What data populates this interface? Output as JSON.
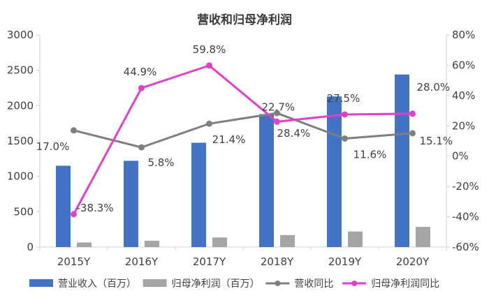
{
  "chart_data": {
    "type": "bar",
    "title": "营收和归母净利润",
    "categories": [
      "2015Y",
      "2016Y",
      "2017Y",
      "2018Y",
      "2019Y",
      "2020Y"
    ],
    "y_left": {
      "min": 0,
      "max": 3000,
      "ticks": [
        "0",
        "500",
        "1000",
        "1500",
        "2000",
        "2500",
        "3000"
      ]
    },
    "y_right": {
      "min": -60,
      "max": 80,
      "ticks": [
        "-60%",
        "-40%",
        "-20%",
        "0%",
        "20%",
        "40%",
        "60%",
        "80%"
      ]
    },
    "series": [
      {
        "name": "营业收入（百万）",
        "type": "bar",
        "axis": "left",
        "color": "#4472c4",
        "values": [
          1150,
          1220,
          1475,
          1880,
          2130,
          2440
        ]
      },
      {
        "name": "归母净利润（百万）",
        "type": "bar",
        "axis": "left",
        "color": "#a5a5a5",
        "values": [
          65,
          90,
          135,
          170,
          220,
          285
        ]
      },
      {
        "name": "营收同比",
        "type": "line",
        "axis": "right",
        "color": "#7f7f7f",
        "values": [
          17.0,
          5.8,
          21.4,
          28.4,
          11.6,
          15.1
        ],
        "labels": [
          "17.0%",
          "5.8%",
          "21.4%",
          "28.4%",
          "11.6%",
          "15.1%"
        ]
      },
      {
        "name": "归母净利润同比",
        "type": "line",
        "axis": "right",
        "color": "#e040c8",
        "values": [
          -38.3,
          44.9,
          59.8,
          22.7,
          27.5,
          28.0
        ],
        "labels": [
          "-38.3%",
          "44.9%",
          "59.8%",
          "22.7%",
          "27.5%",
          "28.0%"
        ]
      }
    ],
    "legend": "bottom",
    "grid": false
  }
}
